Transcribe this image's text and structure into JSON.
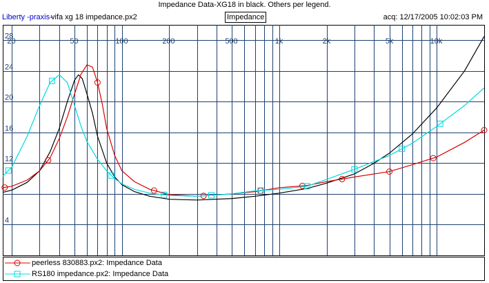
{
  "header": {
    "title": "Impedance Data-XG18 in black. Others per legend.",
    "app_name": "Liberty -praxis-",
    "file_name": "vifa xg 18 impedance.px2",
    "mode_tab": "Impedance",
    "acquired": "acq: 12/17/2005 10:02:03 PM"
  },
  "colors": {
    "background": "#ffffff",
    "grid": "#1c3f6e",
    "axis_labels": "#1c3f6e",
    "xg18": "#000000",
    "peerless": "#d80000",
    "rs180": "#00d8e0"
  },
  "chart_data": {
    "type": "line",
    "title": "Impedance Data-XG18 in black. Others per legend.",
    "x_scale": "log",
    "xlim": [
      17.5,
      20000
    ],
    "ylim": [
      0,
      30
    ],
    "x_ticks": [
      {
        "v": 20,
        "label": "20"
      },
      {
        "v": 30,
        "label": ""
      },
      {
        "v": 40,
        "label": ""
      },
      {
        "v": 50,
        "label": "50"
      },
      {
        "v": 60,
        "label": ""
      },
      {
        "v": 70,
        "label": ""
      },
      {
        "v": 80,
        "label": ""
      },
      {
        "v": 90,
        "label": ""
      },
      {
        "v": 100,
        "label": "100"
      },
      {
        "v": 200,
        "label": "200"
      },
      {
        "v": 300,
        "label": ""
      },
      {
        "v": 400,
        "label": ""
      },
      {
        "v": 500,
        "label": "500"
      },
      {
        "v": 600,
        "label": ""
      },
      {
        "v": 700,
        "label": ""
      },
      {
        "v": 800,
        "label": ""
      },
      {
        "v": 900,
        "label": ""
      },
      {
        "v": 1000,
        "label": "1k"
      },
      {
        "v": 2000,
        "label": "2k"
      },
      {
        "v": 3000,
        "label": ""
      },
      {
        "v": 4000,
        "label": ""
      },
      {
        "v": 5000,
        "label": "5k"
      },
      {
        "v": 6000,
        "label": ""
      },
      {
        "v": 7000,
        "label": ""
      },
      {
        "v": 8000,
        "label": ""
      },
      {
        "v": 9000,
        "label": ""
      },
      {
        "v": 10000,
        "label": "10k"
      }
    ],
    "y_ticks": [
      {
        "v": 4,
        "label": "4"
      },
      {
        "v": 8,
        "label": ""
      },
      {
        "v": 12,
        "label": "12"
      },
      {
        "v": 16,
        "label": "16"
      },
      {
        "v": 20,
        "label": "20"
      },
      {
        "v": 24,
        "label": "24"
      },
      {
        "v": 28,
        "label": "28"
      }
    ],
    "series": [
      {
        "key": "xg18",
        "color": "#000000",
        "marker": "none",
        "points": [
          [
            17.5,
            8.2
          ],
          [
            20,
            8.5
          ],
          [
            25,
            9.5
          ],
          [
            30,
            11
          ],
          [
            35,
            13.5
          ],
          [
            40,
            16.5
          ],
          [
            45,
            20
          ],
          [
            50,
            22.8
          ],
          [
            53,
            23.5
          ],
          [
            56,
            23
          ],
          [
            60,
            21
          ],
          [
            65,
            18.5
          ],
          [
            70,
            15.5
          ],
          [
            80,
            12
          ],
          [
            90,
            10.2
          ],
          [
            100,
            9.2
          ],
          [
            120,
            8.3
          ],
          [
            150,
            7.7
          ],
          [
            200,
            7.3
          ],
          [
            300,
            7.2
          ],
          [
            500,
            7.4
          ],
          [
            700,
            7.7
          ],
          [
            1000,
            8.1
          ],
          [
            1500,
            8.7
          ],
          [
            2000,
            9.4
          ],
          [
            3000,
            10.6
          ],
          [
            4000,
            12
          ],
          [
            5000,
            13.3
          ],
          [
            7000,
            15.8
          ],
          [
            10000,
            19.2
          ],
          [
            15000,
            24
          ],
          [
            20000,
            28.5
          ]
        ]
      },
      {
        "key": "peerless",
        "name": "peerless 830883.px2:  Impedance Data",
        "color": "#d80000",
        "marker": "circle",
        "points": [
          [
            17.5,
            8.8
          ],
          [
            20,
            9
          ],
          [
            25,
            9.8
          ],
          [
            30,
            11
          ],
          [
            35,
            12.7
          ],
          [
            40,
            15.2
          ],
          [
            45,
            18
          ],
          [
            50,
            21
          ],
          [
            55,
            23.6
          ],
          [
            60,
            24.8
          ],
          [
            65,
            24.5
          ],
          [
            70,
            22.5
          ],
          [
            75,
            19.7
          ],
          [
            80,
            16.5
          ],
          [
            90,
            13
          ],
          [
            100,
            11
          ],
          [
            120,
            9.6
          ],
          [
            150,
            8.6
          ],
          [
            200,
            7.9
          ],
          [
            300,
            7.7
          ],
          [
            500,
            8
          ],
          [
            700,
            8.3
          ],
          [
            1000,
            8.8
          ],
          [
            1500,
            9.1
          ],
          [
            2000,
            9.6
          ],
          [
            3000,
            10.2
          ],
          [
            5000,
            10.9
          ],
          [
            7000,
            11.8
          ],
          [
            10000,
            12.8
          ],
          [
            15000,
            14.7
          ],
          [
            20000,
            16.3
          ]
        ],
        "marker_x": [
          18,
          34,
          70,
          160,
          330,
          760,
          1400,
          2500,
          5000,
          9500,
          20000
        ]
      },
      {
        "key": "rs180",
        "name": "RS180 impedance.px2:  Impedance Data",
        "color": "#00d8e0",
        "marker": "square",
        "points": [
          [
            17.5,
            10.3
          ],
          [
            20,
            11.5
          ],
          [
            25,
            15.5
          ],
          [
            30,
            19.5
          ],
          [
            35,
            22.5
          ],
          [
            40,
            23.5
          ],
          [
            45,
            22.5
          ],
          [
            50,
            19.5
          ],
          [
            55,
            16.8
          ],
          [
            60,
            14.8
          ],
          [
            70,
            12.5
          ],
          [
            80,
            11
          ],
          [
            90,
            10
          ],
          [
            100,
            9.3
          ],
          [
            120,
            8.6
          ],
          [
            150,
            8.1
          ],
          [
            200,
            7.8
          ],
          [
            300,
            7.7
          ],
          [
            500,
            8
          ],
          [
            700,
            8.4
          ],
          [
            1000,
            8.6
          ],
          [
            1500,
            9
          ],
          [
            2000,
            9.9
          ],
          [
            3000,
            11.2
          ],
          [
            5000,
            13
          ],
          [
            7000,
            14.6
          ],
          [
            10000,
            16.8
          ],
          [
            15000,
            19.5
          ],
          [
            20000,
            21.8
          ]
        ],
        "marker_x": [
          19,
          36,
          86,
          185,
          370,
          760,
          1500,
          3000,
          6000,
          10500
        ]
      }
    ]
  }
}
